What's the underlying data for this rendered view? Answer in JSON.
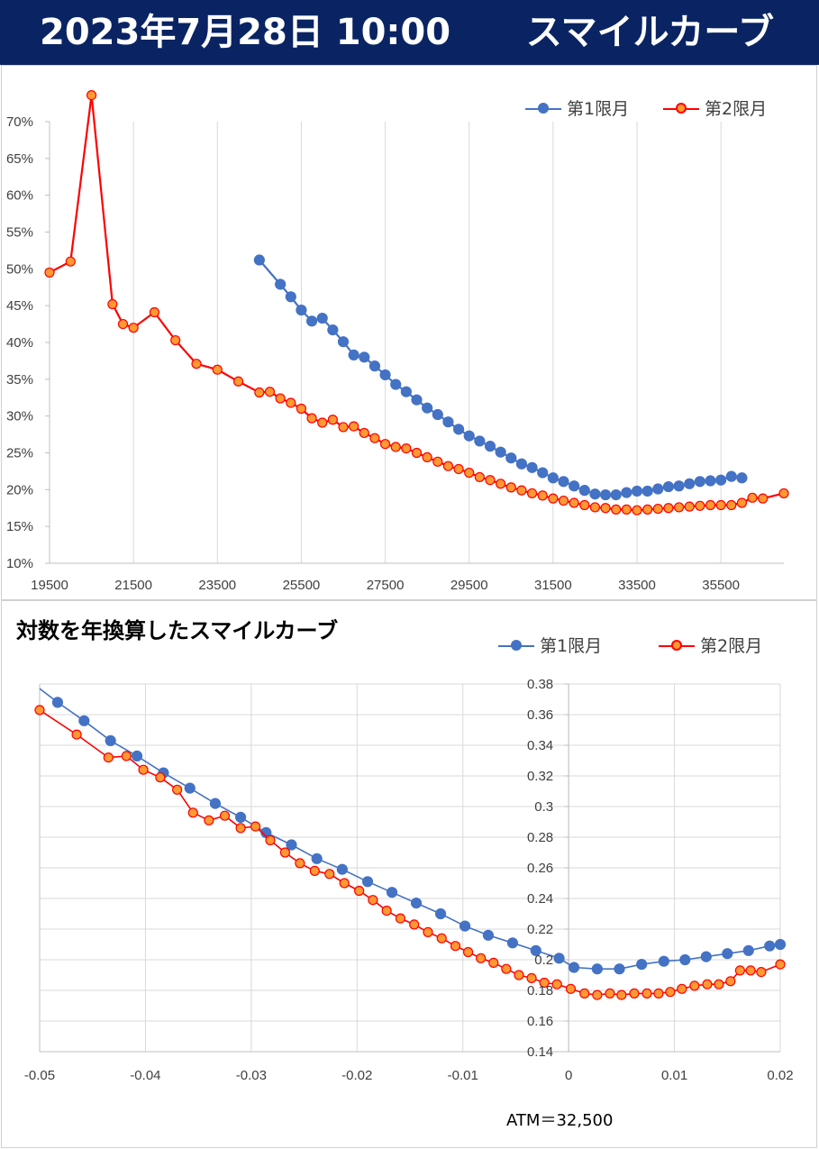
{
  "header": {
    "date_label": "2023年7月28日 10:00",
    "title": "スマイルカーブ"
  },
  "colors": {
    "banner": "#0a2463",
    "series1": "#4472c4",
    "series2": "#ff0000",
    "series2_fill": "#ff9933"
  },
  "chart_data": [
    {
      "type": "line",
      "title": "",
      "xlabel": "",
      "ylabel": "",
      "xlim": [
        19500,
        37000
      ],
      "ylim": [
        10,
        70
      ],
      "y_unit": "%",
      "x_ticks": [
        19500,
        21500,
        23500,
        25500,
        27500,
        29500,
        31500,
        33500,
        35500
      ],
      "y_ticks": [
        10,
        15,
        20,
        25,
        30,
        35,
        40,
        45,
        50,
        55,
        60,
        65,
        70
      ],
      "grid": "vertical",
      "legend_position": "top-right",
      "series": [
        {
          "name": "第1限月",
          "x": [
            24500,
            25000,
            25250,
            25500,
            25750,
            26000,
            26250,
            26500,
            26750,
            27000,
            27250,
            27500,
            27750,
            28000,
            28250,
            28500,
            28750,
            29000,
            29250,
            29500,
            29750,
            30000,
            30250,
            30500,
            30750,
            31000,
            31250,
            31500,
            31750,
            32000,
            32250,
            32500,
            32750,
            33000,
            33250,
            33500,
            33750,
            34000,
            34250,
            34500,
            34750,
            35000,
            35250,
            35500,
            35750,
            36000
          ],
          "y": [
            51.2,
            47.9,
            46.2,
            44.4,
            42.9,
            43.3,
            41.7,
            40.1,
            38.3,
            38.0,
            36.8,
            35.6,
            34.3,
            33.3,
            32.2,
            31.1,
            30.2,
            29.2,
            28.2,
            27.3,
            26.6,
            25.9,
            25.1,
            24.3,
            23.5,
            23.0,
            22.3,
            21.6,
            21.1,
            20.5,
            19.9,
            19.4,
            19.3,
            19.3,
            19.6,
            19.8,
            19.8,
            20.1,
            20.4,
            20.5,
            20.8,
            21.1,
            21.2,
            21.3,
            21.8,
            21.6
          ]
        },
        {
          "name": "第2限月",
          "x": [
            19500,
            20000,
            20500,
            21000,
            21250,
            21500,
            22000,
            22500,
            23000,
            23500,
            24000,
            24500,
            24750,
            25000,
            25250,
            25500,
            25750,
            26000,
            26250,
            26500,
            26750,
            27000,
            27250,
            27500,
            27750,
            28000,
            28250,
            28500,
            28750,
            29000,
            29250,
            29500,
            29750,
            30000,
            30250,
            30500,
            30750,
            31000,
            31250,
            31500,
            31750,
            32000,
            32250,
            32500,
            32750,
            33000,
            33250,
            33500,
            33750,
            34000,
            34250,
            34500,
            34750,
            35000,
            35250,
            35500,
            35750,
            36000,
            36250,
            36500,
            37000
          ],
          "y": [
            49.5,
            51.0,
            73.6,
            45.2,
            42.5,
            42.0,
            44.1,
            40.3,
            37.1,
            36.3,
            34.7,
            33.2,
            33.3,
            32.4,
            31.8,
            31.0,
            29.7,
            29.1,
            29.5,
            28.5,
            28.6,
            27.7,
            27.0,
            26.2,
            25.8,
            25.6,
            25.0,
            24.4,
            23.8,
            23.2,
            22.8,
            22.3,
            21.7,
            21.3,
            20.8,
            20.3,
            19.9,
            19.5,
            19.2,
            18.8,
            18.5,
            18.2,
            17.9,
            17.6,
            17.5,
            17.3,
            17.3,
            17.2,
            17.3,
            17.4,
            17.5,
            17.6,
            17.7,
            17.8,
            17.9,
            17.9,
            17.9,
            18.2,
            18.9,
            18.8,
            19.5
          ]
        }
      ]
    },
    {
      "type": "line",
      "title": "対数を年換算したスマイルカーブ",
      "xlabel": "",
      "ylabel": "",
      "xlim": [
        -0.05,
        0.02
      ],
      "ylim": [
        0.14,
        0.38
      ],
      "x_ticks": [
        -0.05,
        -0.04,
        -0.03,
        -0.02,
        -0.01,
        0,
        0.01,
        0.02
      ],
      "y_ticks": [
        0.14,
        0.16,
        0.18,
        0.2,
        0.22,
        0.24,
        0.26,
        0.28,
        0.3,
        0.32,
        0.34,
        0.36,
        0.38
      ],
      "grid": "both",
      "legend_position": "top-right",
      "series": [
        {
          "name": "第1限月",
          "x": [
            -0.05,
            -0.0483,
            -0.0458,
            -0.0433,
            -0.0408,
            -0.0383,
            -0.0358,
            -0.0334,
            -0.031,
            -0.0286,
            -0.0262,
            -0.0238,
            -0.0214,
            -0.019,
            -0.0167,
            -0.0144,
            -0.0121,
            -0.0098,
            -0.0076,
            -0.0053,
            -0.0031,
            -0.0009,
            0.0005,
            0.0027,
            0.0048,
            0.0069,
            0.009,
            0.011,
            0.013,
            0.015,
            0.017,
            0.019,
            0.02
          ],
          "y": [
            0.377,
            0.368,
            0.356,
            0.343,
            0.333,
            0.322,
            0.312,
            0.302,
            0.293,
            0.283,
            0.275,
            0.266,
            0.259,
            0.251,
            0.244,
            0.237,
            0.23,
            0.222,
            0.216,
            0.211,
            0.206,
            0.201,
            0.195,
            0.194,
            0.194,
            0.197,
            0.199,
            0.2,
            0.202,
            0.204,
            0.206,
            0.209,
            0.21
          ]
        },
        {
          "name": "第2限月",
          "x": [
            -0.05,
            -0.05,
            -0.0465,
            -0.0435,
            -0.0418,
            -0.0402,
            -0.0386,
            -0.037,
            -0.0355,
            -0.034,
            -0.0325,
            -0.031,
            -0.0296,
            -0.0282,
            -0.0268,
            -0.0254,
            -0.024,
            -0.0226,
            -0.0212,
            -0.0198,
            -0.0185,
            -0.0172,
            -0.0159,
            -0.0146,
            -0.0133,
            -0.012,
            -0.0107,
            -0.0095,
            -0.0083,
            -0.0071,
            -0.0059,
            -0.0047,
            -0.0035,
            -0.0023,
            -0.0011,
            0.0002,
            0.0015,
            0.0027,
            0.0039,
            0.005,
            0.0062,
            0.0074,
            0.0085,
            0.0096,
            0.0107,
            0.0119,
            0.0131,
            0.0142,
            0.0153,
            0.0162,
            0.0172,
            0.0182,
            0.02
          ],
          "y": [
            0.363,
            0.363,
            0.347,
            0.332,
            0.333,
            0.324,
            0.319,
            0.311,
            0.296,
            0.291,
            0.294,
            0.286,
            0.287,
            0.278,
            0.27,
            0.263,
            0.258,
            0.256,
            0.25,
            0.245,
            0.239,
            0.232,
            0.227,
            0.223,
            0.218,
            0.214,
            0.209,
            0.205,
            0.201,
            0.198,
            0.194,
            0.19,
            0.188,
            0.185,
            0.184,
            0.181,
            0.178,
            0.177,
            0.178,
            0.177,
            0.178,
            0.178,
            0.178,
            0.179,
            0.181,
            0.183,
            0.184,
            0.184,
            0.186,
            0.193,
            0.193,
            0.192,
            0.197
          ]
        }
      ]
    }
  ],
  "note": {
    "atm": "ATM＝32,500"
  }
}
